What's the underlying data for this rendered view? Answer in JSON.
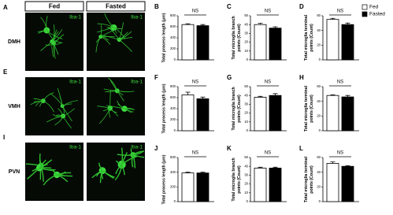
{
  "figure": {
    "panel_labels": [
      "A",
      "E",
      "I"
    ],
    "columns": [
      "Fed",
      "Fasted"
    ],
    "rows": [
      "DMH",
      "VMH",
      "PVN"
    ],
    "stain": "Iba-1"
  },
  "chart_data": [
    {
      "type": "bar",
      "panel": "B",
      "ylabel": [
        "Total process length (μm)"
      ],
      "annotation": "NS",
      "ylim": [
        0,
        800
      ],
      "yticks": [
        0,
        200,
        400,
        600,
        800
      ],
      "series": [
        {
          "name": "Fed",
          "color": "#ffffff",
          "values": [
            640
          ],
          "errors": [
            15
          ]
        },
        {
          "name": "Fasted",
          "color": "#000000",
          "values": [
            620
          ],
          "errors": [
            20
          ]
        }
      ]
    },
    {
      "type": "bar",
      "panel": "C",
      "ylabel": [
        "Total microglia branch",
        "points (Count)"
      ],
      "annotation": "NS",
      "ylim": [
        0,
        50
      ],
      "yticks": [
        0,
        10,
        20,
        30,
        40,
        50
      ],
      "series": [
        {
          "name": "Fed",
          "color": "#ffffff",
          "values": [
            40
          ],
          "errors": [
            1.5
          ]
        },
        {
          "name": "Fasted",
          "color": "#000000",
          "values": [
            36
          ],
          "errors": [
            1.5
          ]
        }
      ]
    },
    {
      "type": "bar",
      "panel": "D",
      "ylabel": [
        "Total microglia terminal",
        "points (Count)"
      ],
      "annotation": "NS",
      "ylim": [
        0,
        60
      ],
      "yticks": [
        0,
        20,
        40,
        60
      ],
      "series": [
        {
          "name": "Fed",
          "color": "#ffffff",
          "values": [
            55
          ],
          "errors": [
            1.5
          ]
        },
        {
          "name": "Fasted",
          "color": "#000000",
          "values": [
            48
          ],
          "errors": [
            2
          ]
        }
      ]
    },
    {
      "type": "bar",
      "panel": "F",
      "ylabel": [
        "Total process length (μm)"
      ],
      "annotation": "NS",
      "ylim": [
        0,
        800
      ],
      "yticks": [
        0,
        200,
        400,
        600,
        800
      ],
      "series": [
        {
          "name": "Fed",
          "color": "#ffffff",
          "values": [
            650
          ],
          "errors": [
            50
          ]
        },
        {
          "name": "Fasted",
          "color": "#000000",
          "values": [
            580
          ],
          "errors": [
            30
          ]
        }
      ]
    },
    {
      "type": "bar",
      "panel": "G",
      "ylabel": [
        "Total microglia branch",
        "points (Count)"
      ],
      "annotation": "NS",
      "ylim": [
        0,
        50
      ],
      "yticks": [
        0,
        10,
        20,
        30,
        40,
        50
      ],
      "series": [
        {
          "name": "Fed",
          "color": "#ffffff",
          "values": [
            38
          ],
          "errors": [
            1
          ]
        },
        {
          "name": "Fasted",
          "color": "#000000",
          "values": [
            40
          ],
          "errors": [
            2
          ]
        }
      ]
    },
    {
      "type": "bar",
      "panel": "H",
      "ylabel": [
        "Total microglia terminal",
        "points (Count)"
      ],
      "annotation": "NS",
      "ylim": [
        0,
        60
      ],
      "yticks": [
        0,
        20,
        40,
        60
      ],
      "series": [
        {
          "name": "Fed",
          "color": "#ffffff",
          "values": [
            48
          ],
          "errors": [
            1
          ]
        },
        {
          "name": "Fasted",
          "color": "#000000",
          "values": [
            46
          ],
          "errors": [
            2
          ]
        }
      ]
    },
    {
      "type": "bar",
      "panel": "J",
      "ylabel": [
        "Total process length (μm)"
      ],
      "annotation": "NS",
      "ylim": [
        0,
        600
      ],
      "yticks": [
        0,
        200,
        400,
        600
      ],
      "series": [
        {
          "name": "Fed",
          "color": "#ffffff",
          "values": [
            390
          ],
          "errors": [
            10
          ]
        },
        {
          "name": "Fasted",
          "color": "#000000",
          "values": [
            390
          ],
          "errors": [
            12
          ]
        }
      ]
    },
    {
      "type": "bar",
      "panel": "K",
      "ylabel": [
        "Total microglia branch",
        "points (Count)"
      ],
      "annotation": "NS",
      "ylim": [
        0,
        50
      ],
      "yticks": [
        0,
        10,
        20,
        30,
        40,
        50
      ],
      "series": [
        {
          "name": "Fed",
          "color": "#ffffff",
          "values": [
            38
          ],
          "errors": [
            1
          ]
        },
        {
          "name": "Fasted",
          "color": "#000000",
          "values": [
            38
          ],
          "errors": [
            1
          ]
        }
      ]
    },
    {
      "type": "bar",
      "panel": "L",
      "ylabel": [
        "Total microglia terminal",
        "points (Count)"
      ],
      "annotation": "NS",
      "ylim": [
        0,
        60
      ],
      "yticks": [
        0,
        20,
        40,
        60
      ],
      "series": [
        {
          "name": "Fed",
          "color": "#ffffff",
          "values": [
            52
          ],
          "errors": [
            2
          ]
        },
        {
          "name": "Fasted",
          "color": "#000000",
          "values": [
            48
          ],
          "errors": [
            1
          ]
        }
      ]
    }
  ]
}
